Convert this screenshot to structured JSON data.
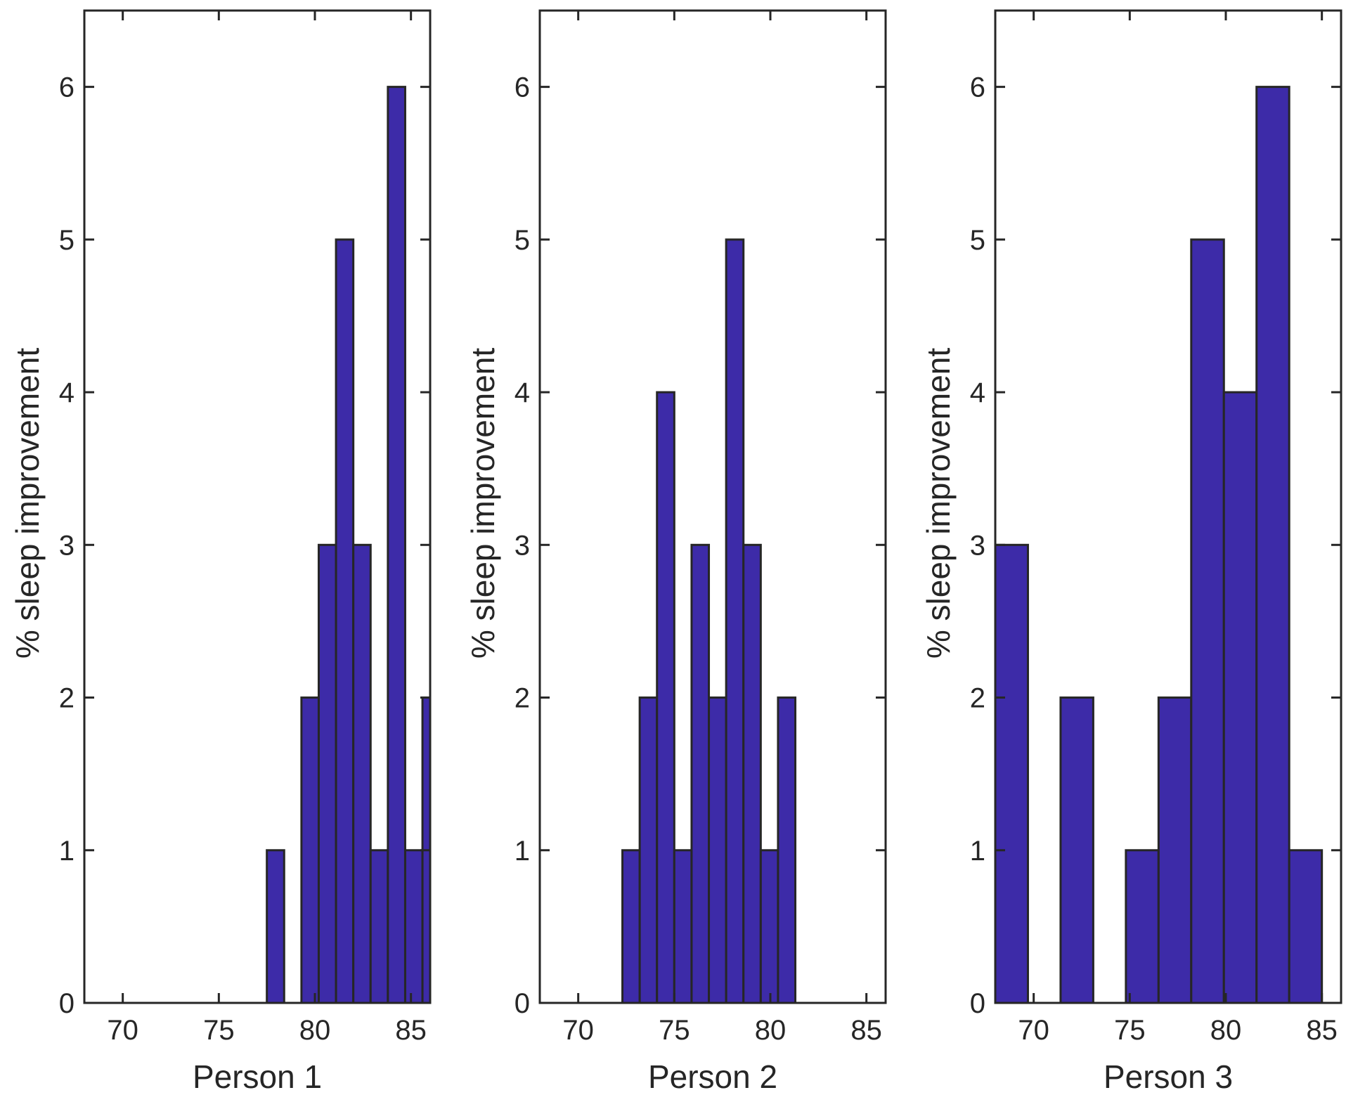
{
  "chart_data": [
    {
      "type": "bar",
      "subtype": "histogram",
      "xlabel": "Person 1",
      "ylabel": "% sleep improvement",
      "xlim": [
        68,
        86
      ],
      "ylim": [
        0,
        6.5
      ],
      "xticks": [
        70,
        75,
        80,
        85
      ],
      "yticks": [
        0,
        1,
        2,
        3,
        4,
        5,
        6
      ],
      "bar_color": "#3D2BA8",
      "bins": [
        {
          "x0": 77.5,
          "x1": 78.4,
          "count": 1
        },
        {
          "x0": 78.4,
          "x1": 79.3,
          "count": 0
        },
        {
          "x0": 79.3,
          "x1": 80.2,
          "count": 2
        },
        {
          "x0": 80.2,
          "x1": 81.1,
          "count": 3
        },
        {
          "x0": 81.1,
          "x1": 82.0,
          "count": 5
        },
        {
          "x0": 82.0,
          "x1": 82.9,
          "count": 3
        },
        {
          "x0": 82.9,
          "x1": 83.8,
          "count": 1
        },
        {
          "x0": 83.8,
          "x1": 84.7,
          "count": 6
        },
        {
          "x0": 84.7,
          "x1": 85.6,
          "count": 1
        },
        {
          "x0": 85.6,
          "x1": 86.5,
          "count": 2
        }
      ]
    },
    {
      "type": "bar",
      "subtype": "histogram",
      "xlabel": "Person 2",
      "ylabel": "% sleep improvement",
      "xlim": [
        68,
        86
      ],
      "ylim": [
        0,
        6.5
      ],
      "xticks": [
        70,
        75,
        80,
        85
      ],
      "yticks": [
        0,
        1,
        2,
        3,
        4,
        5,
        6
      ],
      "bar_color": "#3D2BA8",
      "bins": [
        {
          "x0": 72.3,
          "x1": 73.2,
          "count": 1
        },
        {
          "x0": 73.2,
          "x1": 74.1,
          "count": 2
        },
        {
          "x0": 74.1,
          "x1": 75.0,
          "count": 4
        },
        {
          "x0": 75.0,
          "x1": 75.9,
          "count": 1
        },
        {
          "x0": 75.9,
          "x1": 76.8,
          "count": 3
        },
        {
          "x0": 76.8,
          "x1": 77.7,
          "count": 2
        },
        {
          "x0": 77.7,
          "x1": 78.6,
          "count": 5
        },
        {
          "x0": 78.6,
          "x1": 79.5,
          "count": 3
        },
        {
          "x0": 79.5,
          "x1": 80.4,
          "count": 1
        },
        {
          "x0": 80.4,
          "x1": 81.3,
          "count": 2
        }
      ]
    },
    {
      "type": "bar",
      "subtype": "histogram",
      "xlabel": "Person 3",
      "ylabel": "% sleep improvement",
      "xlim": [
        68,
        86
      ],
      "ylim": [
        0,
        6.5
      ],
      "xticks": [
        70,
        75,
        80,
        85
      ],
      "yticks": [
        0,
        1,
        2,
        3,
        4,
        5,
        6
      ],
      "bar_color": "#3D2BA8",
      "bins": [
        {
          "x0": 68.0,
          "x1": 69.7,
          "count": 3
        },
        {
          "x0": 69.7,
          "x1": 71.4,
          "count": 0
        },
        {
          "x0": 71.4,
          "x1": 73.1,
          "count": 2
        },
        {
          "x0": 73.1,
          "x1": 74.8,
          "count": 0
        },
        {
          "x0": 74.8,
          "x1": 76.5,
          "count": 1
        },
        {
          "x0": 76.5,
          "x1": 78.2,
          "count": 2
        },
        {
          "x0": 78.2,
          "x1": 79.9,
          "count": 5
        },
        {
          "x0": 79.9,
          "x1": 81.6,
          "count": 4
        },
        {
          "x0": 81.6,
          "x1": 83.3,
          "count": 6
        },
        {
          "x0": 83.3,
          "x1": 85.0,
          "count": 1
        }
      ]
    }
  ]
}
